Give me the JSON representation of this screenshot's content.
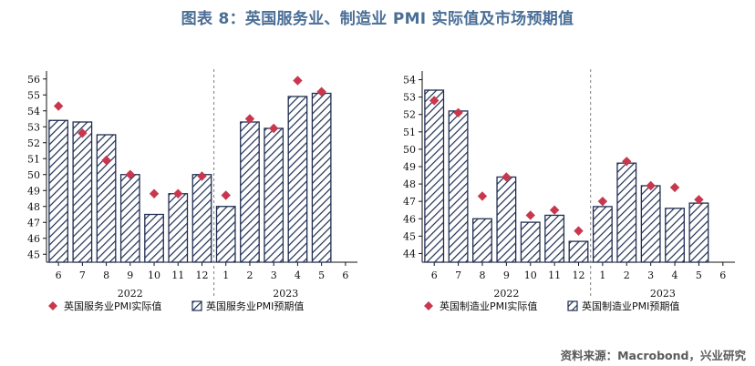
{
  "figure_title": "图表 8：英国服务业、制造业 PMI 实际值及市场预期值",
  "source": "资料来源：Macrobond，兴业研究",
  "colors": {
    "bar_stroke": "#1f2e52",
    "bar_hatch": "#1f2e52",
    "marker": "#c8374d",
    "axis": "#111111",
    "divider": "#808080",
    "title": "#4a6e96"
  },
  "chart_data": [
    {
      "type": "bar",
      "categories": [
        "6",
        "7",
        "8",
        "9",
        "10",
        "11",
        "12",
        "1",
        "2",
        "3",
        "4",
        "5",
        "6"
      ],
      "year_labels": [
        "2022",
        "2023"
      ],
      "ylim": [
        44.5,
        56.5
      ],
      "yticks": [
        "45",
        "46",
        "47",
        "48",
        "49",
        "50",
        "51",
        "52",
        "53",
        "54",
        "55",
        "56"
      ],
      "series": [
        {
          "name": "英国服务业PMI预期值",
          "kind": "bar",
          "values": [
            53.4,
            53.3,
            52.5,
            50.0,
            47.5,
            48.8,
            50.0,
            48.0,
            53.3,
            52.9,
            54.9,
            55.1,
            null
          ]
        },
        {
          "name": "英国服务业PMI实际值",
          "kind": "marker",
          "values": [
            54.3,
            52.6,
            50.9,
            50.0,
            48.8,
            48.8,
            49.9,
            48.7,
            53.5,
            52.9,
            55.9,
            55.2,
            null
          ]
        }
      ],
      "legend_position": "bottom"
    },
    {
      "type": "bar",
      "categories": [
        "6",
        "7",
        "8",
        "9",
        "10",
        "11",
        "12",
        "1",
        "2",
        "3",
        "4",
        "5",
        "6"
      ],
      "year_labels": [
        "2022",
        "2023"
      ],
      "ylim": [
        43.5,
        54.5
      ],
      "yticks": [
        "44",
        "45",
        "46",
        "47",
        "48",
        "49",
        "50",
        "51",
        "52",
        "53",
        "54"
      ],
      "series": [
        {
          "name": "英国制造业PMI预期值",
          "kind": "bar",
          "values": [
            53.4,
            52.2,
            46.0,
            48.4,
            45.8,
            46.2,
            44.7,
            46.7,
            49.2,
            47.9,
            46.6,
            46.9,
            null
          ]
        },
        {
          "name": "英国制造业PMI实际值",
          "kind": "marker",
          "values": [
            52.8,
            52.1,
            47.3,
            48.4,
            46.2,
            46.5,
            45.3,
            47.0,
            49.3,
            47.9,
            47.8,
            47.1,
            null
          ]
        }
      ],
      "legend_position": "bottom"
    }
  ]
}
